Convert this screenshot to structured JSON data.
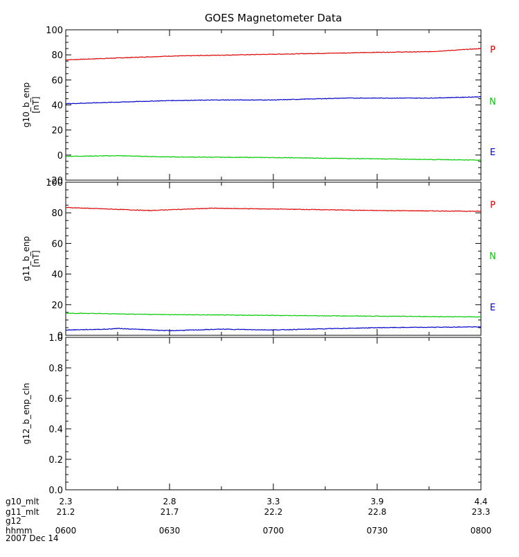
{
  "chart_data": {
    "type": "line",
    "title": "GOES Magnetometer Data",
    "x": [
      "0600",
      "0630",
      "0700",
      "0730",
      "0800"
    ],
    "xlim_hours": [
      6.0,
      8.0
    ],
    "colors": {
      "P": "#e00000",
      "N": "#00cc00",
      "E": "#0000cc",
      "axes": "#000000"
    },
    "panels": [
      {
        "ylabel": "g10_b_enp",
        "yunit": "[nT]",
        "ylim": [
          -20,
          100
        ],
        "yticks": [
          -20,
          0,
          20,
          40,
          60,
          80,
          100
        ],
        "legend": [
          "P",
          "N",
          "E"
        ],
        "series": [
          {
            "name": "P",
            "color": "#e00000",
            "x": [
              6.0,
              6.5,
              7.0,
              7.5,
              7.75,
              8.0
            ],
            "values": [
              76,
              79,
              80.5,
              82,
              82.5,
              85
            ]
          },
          {
            "name": "N",
            "color": "#00cc00",
            "x": [
              6.0,
              6.25,
              6.5,
              7.0,
              7.5,
              8.0
            ],
            "values": [
              -1,
              -0.5,
              -1.5,
              -2,
              -3,
              -4
            ]
          },
          {
            "name": "E",
            "color": "#0000cc",
            "x": [
              6.0,
              6.5,
              6.75,
              7.0,
              7.35,
              7.75,
              8.0
            ],
            "values": [
              41,
              43.5,
              44,
              44,
              45.5,
              45.5,
              46.5
            ]
          }
        ]
      },
      {
        "ylabel": "g11_b_enp",
        "yunit": "[nT]",
        "ylim": [
          0,
          100
        ],
        "yticks": [
          0,
          20,
          40,
          60,
          80,
          100
        ],
        "legend": [
          "P",
          "N",
          "E"
        ],
        "series": [
          {
            "name": "P",
            "color": "#e00000",
            "x": [
              6.0,
              6.2,
              6.4,
              6.7,
              7.0,
              7.5,
              8.0
            ],
            "values": [
              83.5,
              82.5,
              81.5,
              83,
              82.5,
              81.5,
              81
            ]
          },
          {
            "name": "N",
            "color": "#00cc00",
            "x": [
              6.0,
              6.5,
              7.0,
              7.5,
              8.0
            ],
            "values": [
              14.5,
              13.5,
              13,
              12.5,
              12
            ]
          },
          {
            "name": "E",
            "color": "#0000cc",
            "x": [
              6.0,
              6.2,
              6.25,
              6.5,
              6.75,
              7.0,
              7.5,
              8.0
            ],
            "values": [
              3.5,
              4,
              4.5,
              3,
              4,
              3.5,
              5,
              5.5
            ]
          }
        ]
      },
      {
        "ylabel": "g12_b_enp_cln",
        "yunit": "",
        "ylim": [
          0.0,
          1.0
        ],
        "yticks": [
          "0.0",
          "0.2",
          "0.4",
          "0.6",
          "0.8",
          "1.0"
        ],
        "legend": [],
        "series": []
      }
    ],
    "bottom_rows": [
      {
        "label": "g10_mlt",
        "values": [
          "2.3",
          "2.8",
          "3.3",
          "3.9",
          "4.4"
        ]
      },
      {
        "label": "g11_mlt",
        "values": [
          "21.2",
          "21.7",
          "22.2",
          "22.8",
          "23.3"
        ]
      },
      {
        "label": "g12",
        "values": []
      },
      {
        "label": "hhmm",
        "values": [
          "0600",
          "0630",
          "0700",
          "0730",
          "0800"
        ]
      }
    ],
    "date": "2007 Dec 14"
  }
}
